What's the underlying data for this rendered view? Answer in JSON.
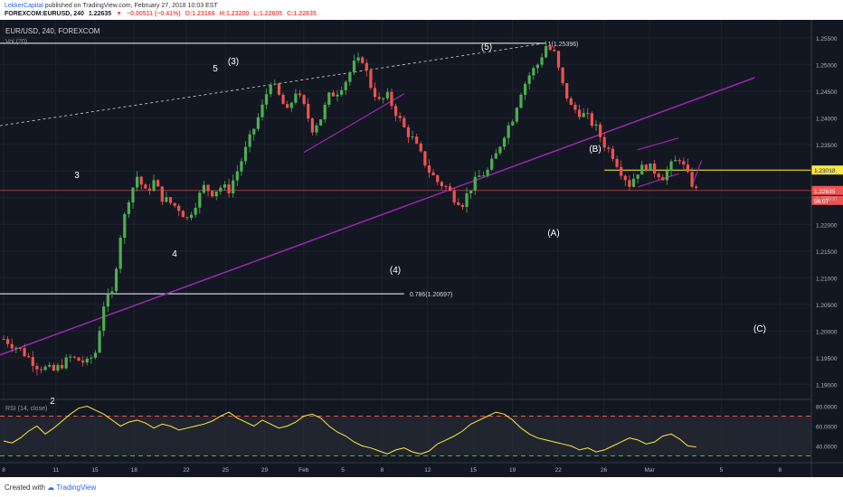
{
  "header": {
    "author": "LekkerCapital",
    "published": "published on TradingView.com, February 27, 2018 10:03 EST",
    "symbol_line": "FOREXCOM:EURUSD, 240",
    "last": "1.22635",
    "change": "−0.00511 (−0.41%)",
    "open": "O:1.23166",
    "high": "H:1.23200",
    "low": "L:1.22605",
    "close": "C:1.22635"
  },
  "chart_data": {
    "type": "candlestick",
    "title": "EUR/USD, 240, FOREXCOM",
    "volume_label": "Vol (20)",
    "y_axis": {
      "ticks": [
        "1.25500",
        "1.25000",
        "1.24500",
        "1.24000",
        "1.23500",
        "1.23000",
        "1.22500",
        "1.22000",
        "1.21500",
        "1.21000",
        "1.20500",
        "1.20000",
        "1.19500",
        "1.19000"
      ],
      "range": [
        1.1875,
        1.2575
      ]
    },
    "x_axis": {
      "ticks": [
        "8",
        "11",
        "15",
        "18",
        "22",
        "25",
        "29",
        "Feb",
        "5",
        "8",
        "12",
        "15",
        "19",
        "22",
        "26",
        "Mar",
        "5",
        "8"
      ]
    },
    "price_path": [
      [
        0,
        1.1985
      ],
      [
        2,
        1.1965
      ],
      [
        4,
        1.1935
      ],
      [
        6,
        1.1925
      ],
      [
        8,
        1.195
      ],
      [
        10,
        1.194
      ],
      [
        11,
        1.196
      ],
      [
        12,
        1.205
      ],
      [
        13,
        1.207
      ],
      [
        14,
        1.218
      ],
      [
        15,
        1.225
      ],
      [
        16,
        1.229
      ],
      [
        17,
        1.226
      ],
      [
        18,
        1.228
      ],
      [
        19,
        1.225
      ],
      [
        20,
        1.224
      ],
      [
        21,
        1.223
      ],
      [
        22,
        1.221
      ],
      [
        23,
        1.224
      ],
      [
        24,
        1.227
      ],
      [
        25,
        1.226
      ],
      [
        26,
        1.227
      ],
      [
        27,
        1.2265
      ],
      [
        28,
        1.23
      ],
      [
        29,
        1.234
      ],
      [
        30,
        1.238
      ],
      [
        31,
        1.242
      ],
      [
        32,
        1.247
      ],
      [
        33,
        1.244
      ],
      [
        34,
        1.241
      ],
      [
        35,
        1.245
      ],
      [
        36,
        1.242
      ],
      [
        37,
        1.238
      ],
      [
        38,
        1.24
      ],
      [
        39,
        1.244
      ],
      [
        40,
        1.245
      ],
      [
        41,
        1.247
      ],
      [
        42,
        1.25
      ],
      [
        43,
        1.251
      ],
      [
        44,
        1.246
      ],
      [
        45,
        1.243
      ],
      [
        46,
        1.244
      ],
      [
        47,
        1.241
      ],
      [
        48,
        1.238
      ],
      [
        49,
        1.236
      ],
      [
        50,
        1.233
      ],
      [
        51,
        1.23
      ],
      [
        52,
        1.228
      ],
      [
        53,
        1.227
      ],
      [
        54,
        1.225
      ],
      [
        55,
        1.224
      ],
      [
        56,
        1.227
      ],
      [
        57,
        1.229
      ],
      [
        58,
        1.23
      ],
      [
        59,
        1.233
      ],
      [
        60,
        1.237
      ],
      [
        61,
        1.24
      ],
      [
        62,
        1.245
      ],
      [
        63,
        1.248
      ],
      [
        64,
        1.25
      ],
      [
        65,
        1.2535
      ],
      [
        66,
        1.252
      ],
      [
        67,
        1.246
      ],
      [
        68,
        1.242
      ],
      [
        69,
        1.241
      ],
      [
        70,
        1.24
      ],
      [
        71,
        1.238
      ],
      [
        72,
        1.235
      ],
      [
        73,
        1.233
      ],
      [
        74,
        1.23
      ],
      [
        75,
        1.2275
      ],
      [
        76,
        1.23
      ],
      [
        77,
        1.231
      ],
      [
        78,
        1.23
      ],
      [
        79,
        1.229
      ],
      [
        80,
        1.231
      ],
      [
        81,
        1.2325
      ],
      [
        82,
        1.229
      ],
      [
        83,
        1.2263
      ]
    ],
    "levels": [
      {
        "label": "1(1.25396)",
        "price": 1.25396
      },
      {
        "label": "0.786(1.20697)",
        "price": 1.20697
      },
      {
        "label": "1.23018",
        "price": 1.23018
      }
    ],
    "price_tags": [
      {
        "text": "1.22635",
        "color": "#ef5350"
      },
      {
        "text": "56.07",
        "color": "#ef5350"
      }
    ],
    "wave_labels": [
      "2",
      "3",
      "4",
      "5",
      "(3)",
      "(4)",
      "(5)",
      "(A)",
      "(B)",
      "(C)"
    ],
    "rsi": {
      "label": "RSI (14, close)",
      "ticks": [
        "80.0000",
        "60.0000",
        "40.0000"
      ],
      "range": [
        25,
        85
      ],
      "upper": 70,
      "lower": 30,
      "values": [
        45,
        43,
        48,
        55,
        60,
        52,
        58,
        65,
        72,
        78,
        80,
        76,
        72,
        66,
        60,
        64,
        66,
        63,
        58,
        62,
        60,
        56,
        58,
        60,
        62,
        65,
        70,
        74,
        68,
        64,
        60,
        66,
        62,
        58,
        60,
        64,
        70,
        72,
        68,
        60,
        54,
        50,
        44,
        40,
        38,
        35,
        32,
        36,
        38,
        34,
        32,
        35,
        42,
        46,
        50,
        55,
        62,
        66,
        70,
        74,
        72,
        66,
        58,
        52,
        48,
        46,
        44,
        42,
        40,
        36,
        38,
        34,
        36,
        40,
        44,
        48,
        46,
        42,
        44,
        50,
        52,
        47,
        40,
        39
      ]
    }
  },
  "footer": {
    "created_with": "Created with",
    "brand": "TradingView"
  }
}
